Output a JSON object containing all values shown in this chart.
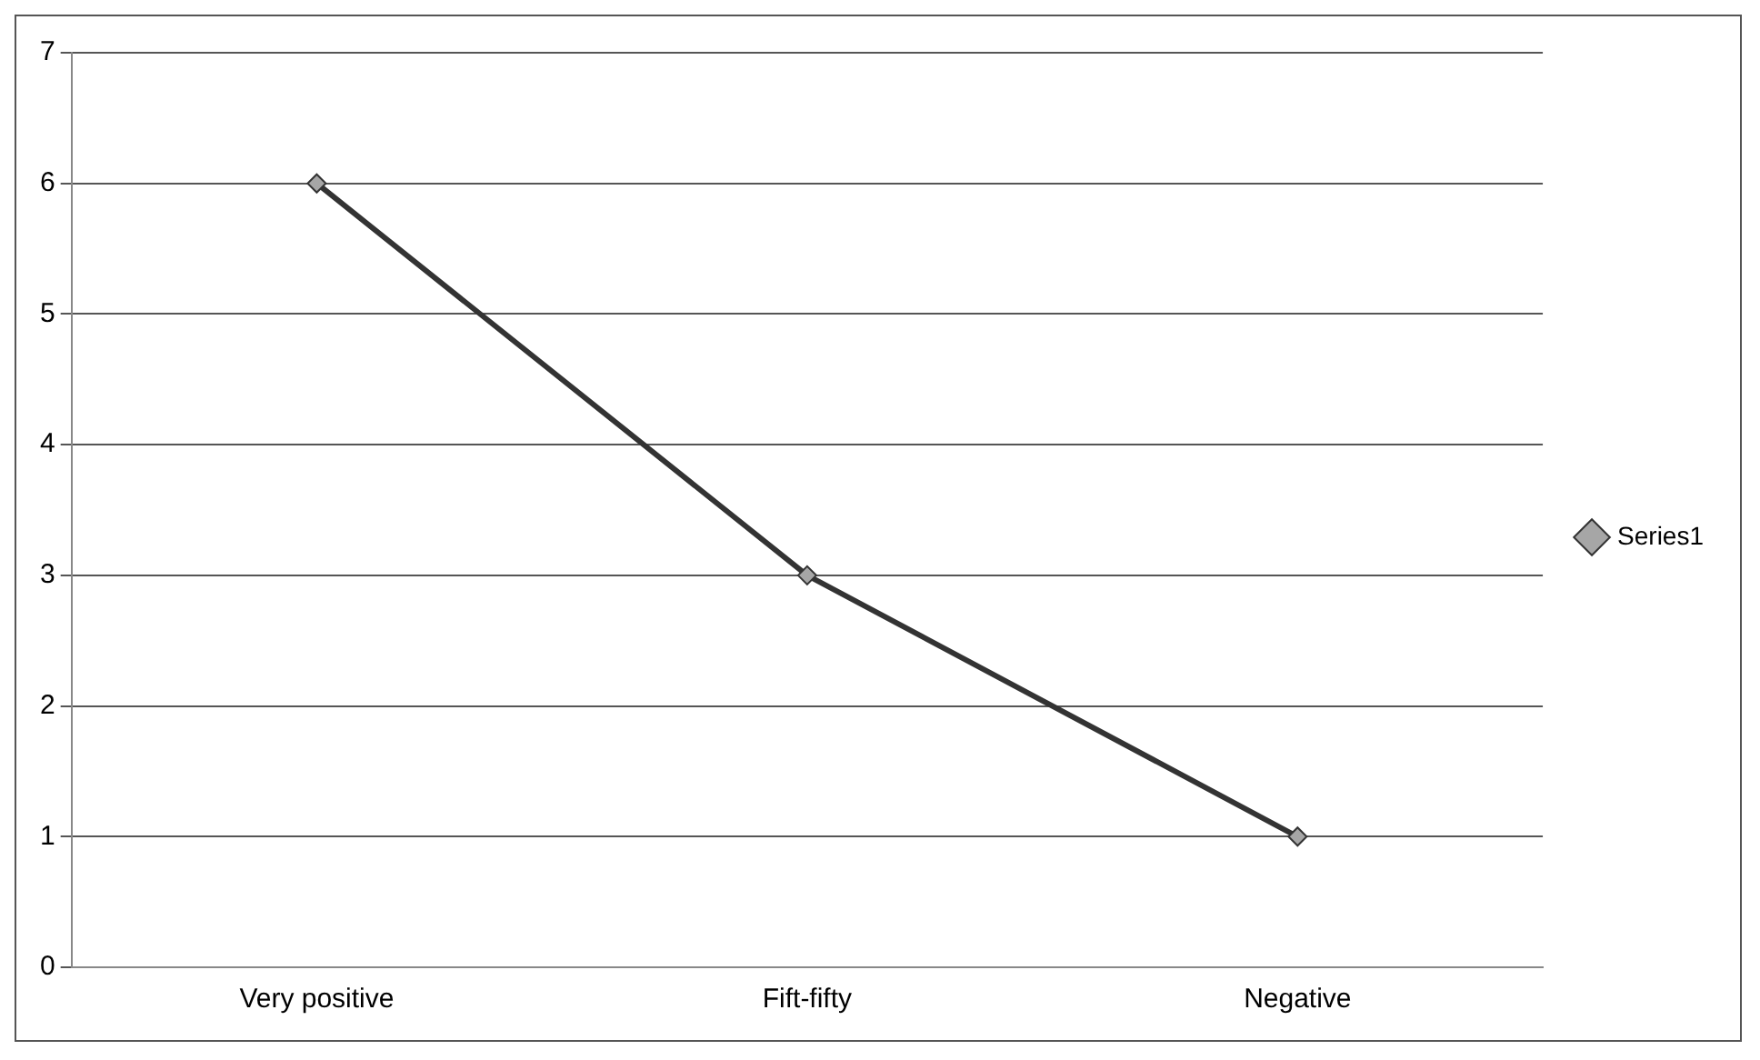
{
  "chart_data": {
    "type": "line",
    "categories": [
      "Very positive",
      "Fift-fifty",
      "Negative"
    ],
    "series": [
      {
        "name": "Series1",
        "color": "#333333",
        "values": [
          6,
          3,
          1
        ]
      }
    ],
    "ylim": [
      0,
      7
    ],
    "yticks": [
      0,
      1,
      2,
      3,
      4,
      5,
      6,
      7
    ],
    "grid": "y",
    "legend": "right",
    "marker": "diamond",
    "line_style": "solid"
  }
}
